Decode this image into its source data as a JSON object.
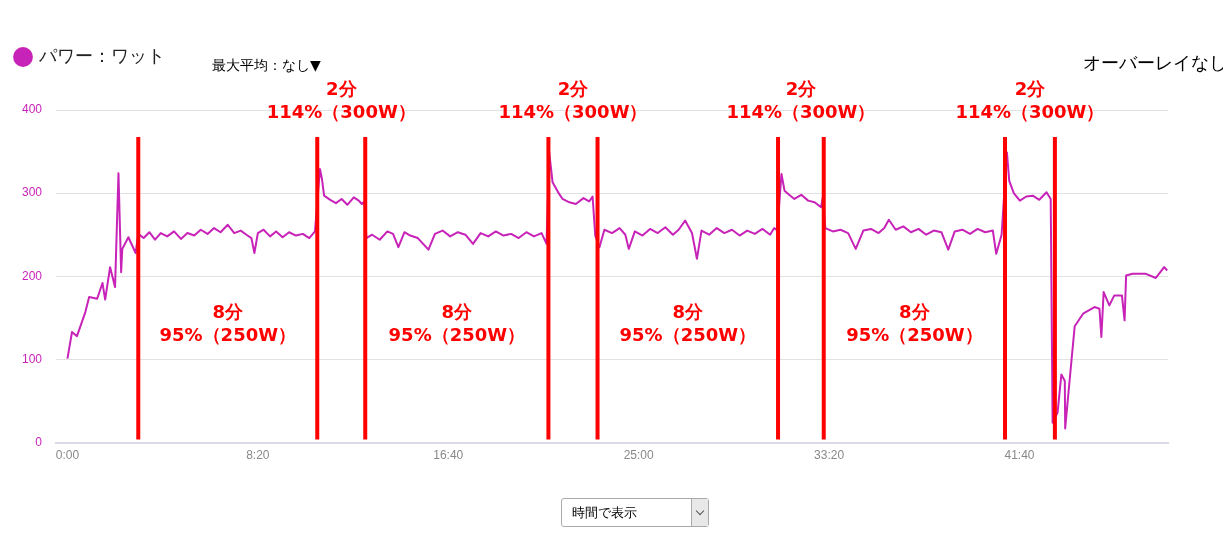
{
  "chart_data": {
    "type": "line",
    "legend": "top left",
    "grid": "y",
    "marker": "none",
    "xlim": [
      -30,
      2890
    ],
    "xticks": [
      {
        "value": 0,
        "label": "0:00"
      },
      {
        "value": 500,
        "label": "8:20"
      },
      {
        "value": 1000,
        "label": "16:40"
      },
      {
        "value": 1500,
        "label": "25:00"
      },
      {
        "value": 2000,
        "label": "33:20"
      },
      {
        "value": 2500,
        "label": "41:40"
      }
    ],
    "ylim": [
      0,
      400
    ],
    "yticks": [
      0,
      100,
      200,
      300,
      400
    ],
    "series": [
      {
        "name": "パワー：ワット",
        "color": "#c823b8",
        "x": [
          0,
          12,
          25,
          47,
          57,
          78,
          92,
          99,
          112,
          125,
          134,
          141,
          144,
          160,
          179,
          186,
          200,
          215,
          230,
          245,
          262,
          280,
          298,
          315,
          333,
          350,
          368,
          385,
          402,
          421,
          438,
          455,
          470,
          483,
          491,
          500,
          515,
          532,
          548,
          565,
          582,
          600,
          618,
          635,
          650,
          663,
          668,
          674,
          690,
          705,
          720,
          735,
          752,
          765,
          773,
          780,
          785,
          800,
          820,
          840,
          855,
          869,
          885,
          900,
          920,
          948,
          965,
          985,
          1005,
          1025,
          1045,
          1065,
          1085,
          1105,
          1125,
          1145,
          1165,
          1185,
          1205,
          1225,
          1245,
          1258,
          1265,
          1274,
          1290,
          1300,
          1318,
          1335,
          1355,
          1370,
          1379,
          1386,
          1397,
          1410,
          1430,
          1450,
          1465,
          1474,
          1490,
          1510,
          1530,
          1550,
          1570,
          1590,
          1605,
          1622,
          1640,
          1653,
          1665,
          1685,
          1705,
          1725,
          1745,
          1765,
          1785,
          1805,
          1825,
          1845,
          1856,
          1864,
          1875,
          1883,
          1895,
          1909,
          1927,
          1945,
          1962,
          1979,
          1984,
          1990,
          2010,
          2030,
          2050,
          2070,
          2090,
          2110,
          2130,
          2145,
          2157,
          2175,
          2195,
          2215,
          2235,
          2255,
          2275,
          2295,
          2313,
          2330,
          2350,
          2370,
          2390,
          2410,
          2430,
          2439,
          2453,
          2467,
          2473,
          2485,
          2501,
          2518,
          2535,
          2552,
          2571,
          2582,
          2587,
          2600,
          2610,
          2619,
          2620,
          2627,
          2636,
          2645,
          2667,
          2697,
          2710,
          2715,
          2721,
          2736,
          2749,
          2769,
          2776,
          2780,
          2797,
          2832,
          2858,
          2880,
          2888
        ],
        "values": [
          101,
          133,
          128,
          157,
          175,
          173,
          192,
          172,
          211,
          187,
          324,
          205,
          233,
          247,
          228,
          251,
          246,
          253,
          244,
          252,
          248,
          254,
          245,
          252,
          249,
          256,
          251,
          258,
          253,
          262,
          252,
          255,
          250,
          246,
          228,
          252,
          256,
          248,
          254,
          247,
          253,
          249,
          251,
          246,
          254,
          329,
          318,
          297,
          292,
          288,
          293,
          286,
          295,
          291,
          287,
          290,
          246,
          250,
          244,
          254,
          251,
          235,
          253,
          249,
          246,
          232,
          251,
          255,
          248,
          253,
          250,
          239,
          252,
          248,
          254,
          249,
          251,
          246,
          253,
          248,
          252,
          239,
          349,
          313,
          300,
          293,
          289,
          287,
          294,
          290,
          296,
          249,
          235,
          256,
          252,
          258,
          250,
          233,
          254,
          249,
          257,
          252,
          259,
          250,
          256,
          267,
          252,
          221,
          255,
          250,
          258,
          252,
          256,
          249,
          255,
          251,
          257,
          250,
          258,
          255,
          323,
          303,
          298,
          293,
          298,
          291,
          289,
          283,
          296,
          258,
          254,
          256,
          252,
          233,
          255,
          257,
          252,
          258,
          268,
          256,
          260,
          253,
          257,
          250,
          255,
          253,
          232,
          254,
          256,
          251,
          257,
          253,
          255,
          227,
          250,
          349,
          315,
          300,
          291,
          296,
          297,
          292,
          301,
          293,
          24,
          36,
          82,
          74,
          17,
          52,
          96,
          140,
          155,
          163,
          161,
          127,
          181,
          165,
          177,
          177,
          147,
          201,
          203,
          203,
          198,
          211,
          207
        ]
      }
    ],
    "ref_lines": [
      {
        "axis": "x",
        "value": 186,
        "color": "#ff0000"
      },
      {
        "axis": "x",
        "value": 656,
        "color": "#ff0000"
      },
      {
        "axis": "x",
        "value": 782,
        "color": "#ff0000"
      },
      {
        "axis": "x",
        "value": 1263,
        "color": "#ff0000"
      },
      {
        "axis": "x",
        "value": 1392,
        "color": "#ff0000"
      },
      {
        "axis": "x",
        "value": 1866,
        "color": "#ff0000"
      },
      {
        "axis": "x",
        "value": 1986,
        "color": "#ff0000"
      },
      {
        "axis": "x",
        "value": 2462,
        "color": "#ff0000"
      },
      {
        "axis": "x",
        "value": 2593,
        "color": "#ff0000"
      }
    ],
    "annotations": [
      "最大平均：なし▼",
      "オーバーレイなし",
      "時間で表示",
      "8分\n95%（250W）",
      "2分\n114%（300W）",
      "8分\n95%（250W）",
      "2分\n114%（300W）",
      "8分\n95%（250W）",
      "2分\n114%（300W）",
      "8分\n95%（250W）",
      "2分\n114%（300W）"
    ]
  }
}
